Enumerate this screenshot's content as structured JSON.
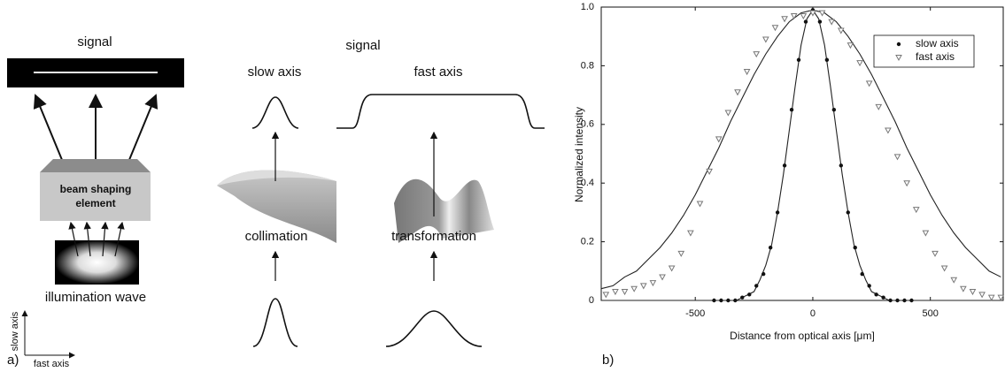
{
  "diagram": {
    "panel_label": "a)",
    "left": {
      "signal": "signal",
      "element_line1": "beam shaping",
      "element_line2": "element",
      "illumination": "illumination wave",
      "slow_axis": "slow axis",
      "fast_axis": "fast axis"
    },
    "middle": {
      "signal": "signal",
      "slow_axis": "slow axis",
      "fast_axis": "fast axis",
      "collimation": "collimation",
      "transformation": "transformation"
    }
  },
  "chart_data": {
    "type": "scatter",
    "panel_label": "b)",
    "xlabel": "Distance from optical axis [μm]",
    "ylabel": "Normalized intensity",
    "xlim": [
      -900,
      810
    ],
    "ylim": [
      0,
      1
    ],
    "xticks": [
      -500,
      0,
      500
    ],
    "yticks": [
      0,
      0.2,
      0.4,
      0.6,
      0.8,
      {
        "value": 1,
        "label": "1.0"
      }
    ],
    "grid": false,
    "legend": "upper right",
    "series": [
      {
        "name": "slow axis",
        "marker": "circle",
        "color": "#111111",
        "x": [
          -420,
          -390,
          -360,
          -330,
          -300,
          -270,
          -240,
          -210,
          -180,
          -150,
          -120,
          -90,
          -60,
          -30,
          0,
          30,
          60,
          90,
          120,
          150,
          180,
          210,
          240,
          270,
          300,
          330,
          360,
          390,
          420
        ],
        "values": [
          0,
          0,
          0,
          0,
          0.01,
          0.02,
          0.05,
          0.09,
          0.18,
          0.3,
          0.46,
          0.65,
          0.82,
          0.95,
          0.99,
          0.95,
          0.82,
          0.65,
          0.46,
          0.3,
          0.18,
          0.09,
          0.05,
          0.02,
          0.01,
          0,
          0,
          0,
          0
        ]
      },
      {
        "name": "fast axis",
        "marker": "triangle-down",
        "color": "#777777",
        "x": [
          -880,
          -840,
          -800,
          -760,
          -720,
          -680,
          -640,
          -600,
          -560,
          -520,
          -480,
          -440,
          -400,
          -360,
          -320,
          -280,
          -240,
          -200,
          -160,
          -120,
          -80,
          -40,
          0,
          40,
          80,
          120,
          160,
          200,
          240,
          280,
          320,
          360,
          400,
          440,
          480,
          520,
          560,
          600,
          640,
          680,
          720,
          760,
          800
        ],
        "values": [
          0.02,
          0.03,
          0.03,
          0.04,
          0.05,
          0.06,
          0.08,
          0.11,
          0.16,
          0.23,
          0.33,
          0.44,
          0.55,
          0.64,
          0.71,
          0.78,
          0.84,
          0.89,
          0.93,
          0.96,
          0.97,
          0.97,
          0.98,
          0.98,
          0.95,
          0.92,
          0.87,
          0.81,
          0.74,
          0.66,
          0.58,
          0.49,
          0.4,
          0.31,
          0.23,
          0.16,
          0.11,
          0.07,
          0.04,
          0.03,
          0.02,
          0.01,
          0.01
        ]
      }
    ],
    "fits": [
      {
        "color": "#222222",
        "x": [
          -900,
          -350,
          -325,
          -300,
          -275,
          -250,
          -225,
          -200,
          -175,
          -150,
          -125,
          -100,
          -75,
          -50,
          -25,
          0,
          25,
          50,
          75,
          100,
          125,
          150,
          175,
          200,
          225,
          250,
          275,
          300,
          325,
          350,
          810
        ],
        "values": [
          0,
          0,
          0,
          0.01,
          0.02,
          0.03,
          0.07,
          0.12,
          0.19,
          0.3,
          0.43,
          0.58,
          0.73,
          0.87,
          0.96,
          0.99,
          0.96,
          0.87,
          0.73,
          0.58,
          0.43,
          0.3,
          0.19,
          0.12,
          0.07,
          0.03,
          0.02,
          0.01,
          0,
          0,
          0
        ]
      },
      {
        "color": "#222222",
        "x": [
          -900,
          -850,
          -800,
          -750,
          -700,
          -650,
          -600,
          -550,
          -500,
          -450,
          -400,
          -350,
          -300,
          -250,
          -200,
          -150,
          -100,
          -50,
          0,
          50,
          100,
          150,
          200,
          250,
          300,
          350,
          400,
          450,
          500,
          550,
          600,
          650,
          700,
          750,
          800
        ],
        "values": [
          0.04,
          0.05,
          0.08,
          0.1,
          0.14,
          0.18,
          0.23,
          0.29,
          0.36,
          0.44,
          0.52,
          0.61,
          0.69,
          0.77,
          0.84,
          0.9,
          0.95,
          0.98,
          0.99,
          0.98,
          0.95,
          0.9,
          0.84,
          0.77,
          0.69,
          0.61,
          0.52,
          0.44,
          0.36,
          0.29,
          0.23,
          0.18,
          0.14,
          0.1,
          0.08
        ]
      }
    ]
  }
}
